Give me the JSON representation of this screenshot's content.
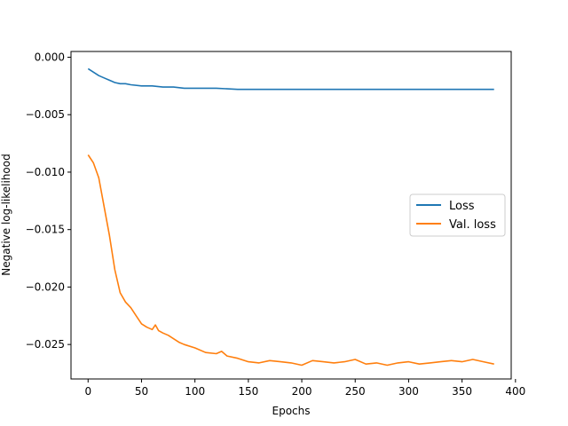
{
  "colors": {
    "loss": "#1f77b4",
    "val_loss": "#ff7f0e"
  },
  "chart_data": {
    "type": "line",
    "title": "",
    "xlabel": "Epochs",
    "ylabel": "Negative log-likelihood",
    "xlim": [
      -16,
      396
    ],
    "ylim": [
      -0.028,
      0.0005
    ],
    "xticks": [
      0,
      50,
      100,
      150,
      200,
      250,
      300,
      350,
      400
    ],
    "xtick_labels": [
      "0",
      "50",
      "100",
      "150",
      "200",
      "250",
      "300",
      "350",
      "400"
    ],
    "yticks": [
      0.0,
      -0.005,
      -0.01,
      -0.015,
      -0.02,
      -0.025
    ],
    "ytick_labels": [
      "0.000",
      "−0.005",
      "−0.010",
      "−0.015",
      "−0.020",
      "−0.025"
    ],
    "grid": false,
    "legend_position": "center-right",
    "series": [
      {
        "name": "Loss",
        "x": [
          0,
          5,
          10,
          15,
          20,
          25,
          30,
          35,
          40,
          50,
          60,
          70,
          80,
          90,
          100,
          120,
          140,
          160,
          180,
          200,
          220,
          240,
          260,
          280,
          300,
          320,
          340,
          360,
          380
        ],
        "y": [
          -0.001,
          -0.0013,
          -0.0016,
          -0.0018,
          -0.002,
          -0.0022,
          -0.0023,
          -0.0023,
          -0.0024,
          -0.0025,
          -0.0025,
          -0.0026,
          -0.0026,
          -0.0027,
          -0.0027,
          -0.0027,
          -0.0028,
          -0.0028,
          -0.0028,
          -0.0028,
          -0.0028,
          -0.0028,
          -0.0028,
          -0.0028,
          -0.0028,
          -0.0028,
          -0.0028,
          -0.0028,
          -0.0028
        ]
      },
      {
        "name": "Val. loss",
        "x": [
          0,
          5,
          10,
          15,
          20,
          25,
          30,
          35,
          40,
          45,
          50,
          55,
          60,
          63,
          66,
          70,
          75,
          80,
          85,
          90,
          100,
          110,
          120,
          125,
          130,
          140,
          150,
          160,
          170,
          180,
          190,
          200,
          210,
          220,
          230,
          240,
          250,
          260,
          270,
          280,
          290,
          300,
          310,
          320,
          330,
          340,
          350,
          360,
          370,
          380
        ],
        "y": [
          -0.0085,
          -0.0092,
          -0.0105,
          -0.013,
          -0.0155,
          -0.0185,
          -0.0205,
          -0.0213,
          -0.0218,
          -0.0225,
          -0.0232,
          -0.0235,
          -0.0237,
          -0.0233,
          -0.0238,
          -0.024,
          -0.0242,
          -0.0245,
          -0.0248,
          -0.025,
          -0.0253,
          -0.0257,
          -0.0258,
          -0.0256,
          -0.026,
          -0.0262,
          -0.0265,
          -0.0266,
          -0.0264,
          -0.0265,
          -0.0266,
          -0.0268,
          -0.0264,
          -0.0265,
          -0.0266,
          -0.0265,
          -0.0263,
          -0.0267,
          -0.0266,
          -0.0268,
          -0.0266,
          -0.0265,
          -0.0267,
          -0.0266,
          -0.0265,
          -0.0264,
          -0.0265,
          -0.0263,
          -0.0265,
          -0.0267
        ]
      }
    ]
  }
}
